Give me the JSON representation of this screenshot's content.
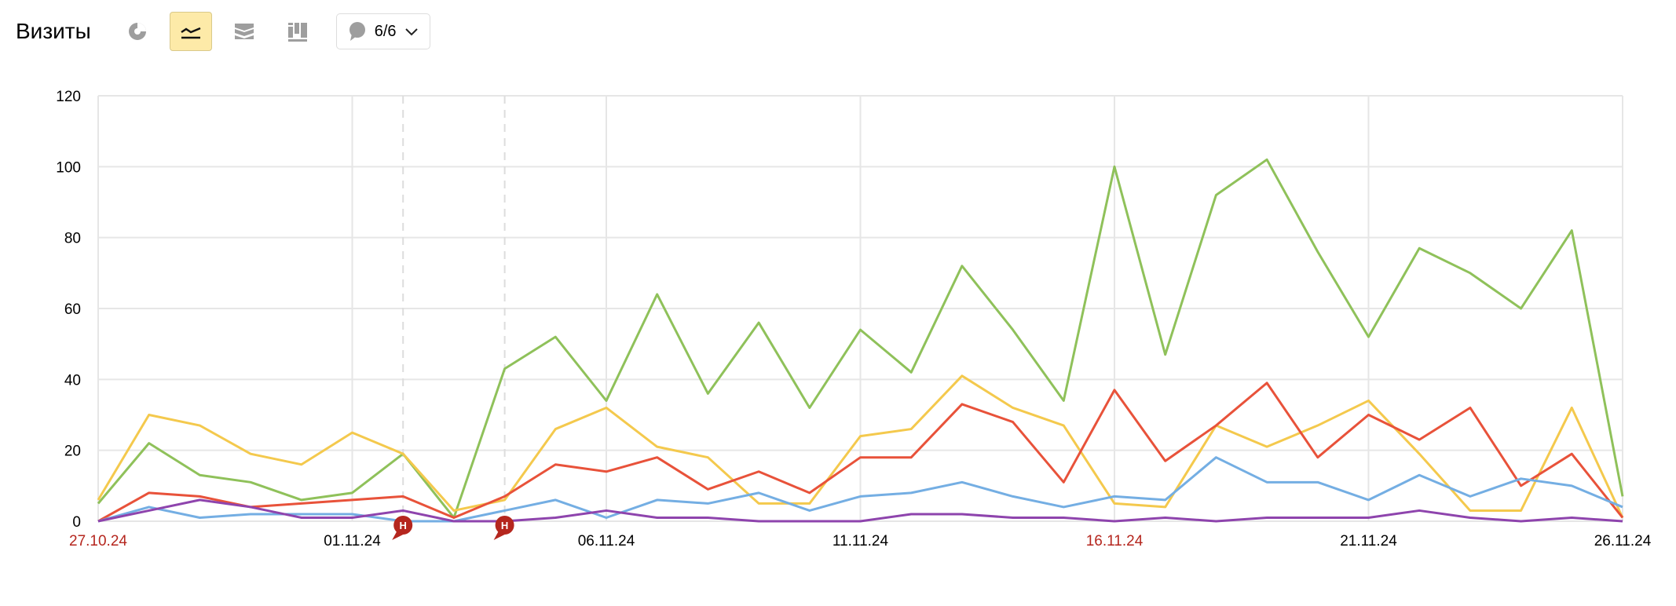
{
  "header": {
    "title": "Визиты",
    "notes_label": "6/6",
    "icons": [
      "pie-chart-icon",
      "line-chart-icon",
      "area-chart-icon",
      "bar-chart-icon",
      "comment-icon"
    ]
  },
  "chart_data": {
    "type": "line",
    "ylim": [
      0,
      120
    ],
    "yticks": [
      "0",
      "20",
      "40",
      "60",
      "80",
      "100",
      "120"
    ],
    "x": [
      "27.10.24",
      "28.10.24",
      "29.10.24",
      "30.10.24",
      "31.10.24",
      "01.11.24",
      "02.11.24",
      "03.11.24",
      "04.11.24",
      "05.11.24",
      "06.11.24",
      "07.11.24",
      "08.11.24",
      "09.11.24",
      "10.11.24",
      "11.11.24",
      "12.11.24",
      "13.11.24",
      "14.11.24",
      "15.11.24",
      "16.11.24",
      "17.11.24",
      "18.11.24",
      "19.11.24",
      "20.11.24",
      "21.11.24",
      "22.11.24",
      "23.11.24",
      "24.11.24",
      "25.11.24",
      "26.11.24"
    ],
    "xtick_labels": [
      {
        "label": "27.10.24",
        "holiday": true
      },
      {
        "label": "01.11.24",
        "holiday": false
      },
      {
        "label": "06.11.24",
        "holiday": false
      },
      {
        "label": "11.11.24",
        "holiday": false
      },
      {
        "label": "16.11.24",
        "holiday": true
      },
      {
        "label": "21.11.24",
        "holiday": false
      },
      {
        "label": "26.11.24",
        "holiday": false
      }
    ],
    "annotations": [
      {
        "date": "02.11.24",
        "label": "Н"
      },
      {
        "date": "04.11.24",
        "label": "Н"
      }
    ],
    "grid": true,
    "series": [
      {
        "color": "#8fc15a",
        "values": [
          5,
          22,
          13,
          11,
          6,
          8,
          19,
          1,
          43,
          52,
          34,
          64,
          36,
          56,
          32,
          54,
          42,
          72,
          54,
          34,
          100,
          47,
          92,
          102,
          76,
          52,
          77,
          70,
          60,
          82,
          7
        ]
      },
      {
        "color": "#f4c94d",
        "values": [
          6,
          30,
          27,
          19,
          16,
          25,
          19,
          3,
          6,
          26,
          32,
          21,
          18,
          5,
          5,
          24,
          26,
          41,
          32,
          27,
          5,
          4,
          27,
          21,
          27,
          34,
          19,
          3,
          3,
          32,
          1
        ]
      },
      {
        "color": "#e8523a",
        "values": [
          0,
          8,
          7,
          4,
          5,
          6,
          7,
          1,
          7,
          16,
          14,
          18,
          9,
          14,
          8,
          18,
          18,
          33,
          28,
          11,
          37,
          17,
          27,
          39,
          18,
          30,
          23,
          32,
          10,
          19,
          1
        ]
      },
      {
        "color": "#74aee3",
        "values": [
          0,
          4,
          1,
          2,
          2,
          2,
          0,
          0,
          3,
          6,
          1,
          6,
          5,
          8,
          3,
          7,
          8,
          11,
          7,
          4,
          7,
          6,
          18,
          11,
          11,
          6,
          13,
          7,
          12,
          10,
          4
        ]
      },
      {
        "color": "#8e44ad",
        "values": [
          0,
          3,
          6,
          4,
          1,
          1,
          3,
          0,
          0,
          1,
          3,
          1,
          1,
          0,
          0,
          0,
          2,
          2,
          1,
          1,
          0,
          1,
          0,
          1,
          1,
          1,
          3,
          1,
          0,
          1,
          0
        ]
      }
    ]
  }
}
